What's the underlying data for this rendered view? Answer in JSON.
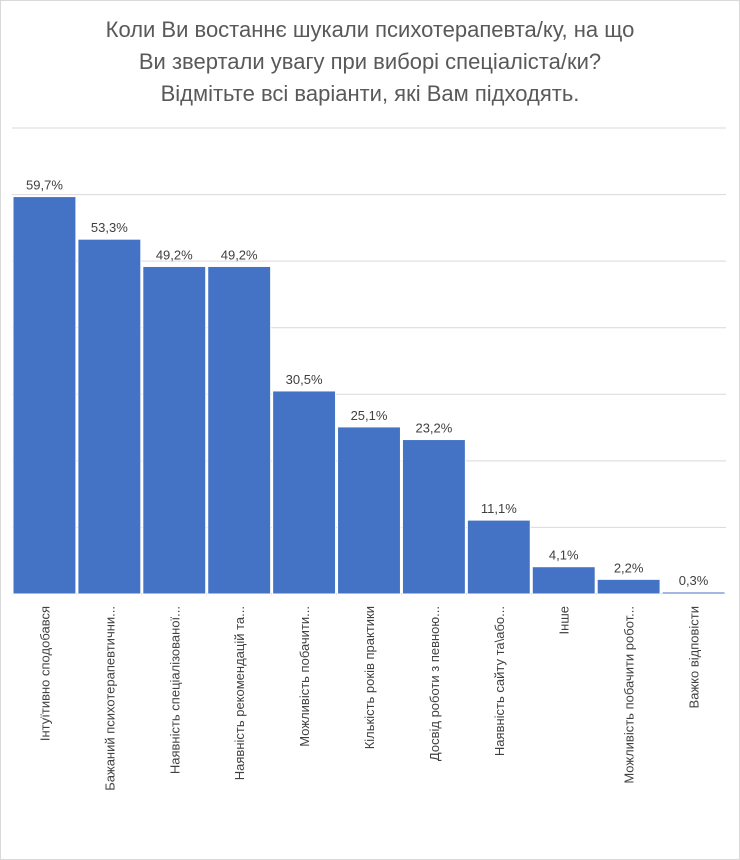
{
  "title_lines": [
    "Коли Ви востаннє шукали психотерапевта/ку,  на що",
    "Ви звертали увагу при виборі спеціаліста/ки?",
    "Відмітьте всі варіанти, які Вам підходять."
  ],
  "chart_data": {
    "type": "bar",
    "title": "Коли Ви востаннє шукали психотерапевта/ку,  на що Ви звертали увагу при виборі спеціаліста/ки? Відмітьте всі варіанти, які Вам підходять.",
    "categories": [
      "Інтуїтивно сподобався",
      "Бажаний психотерапевтични...",
      "Наявність спеціалізованої...",
      "Наявність рекомендацій та...",
      "Можливість побачити...",
      "Кількість років практики",
      "Досвід роботи з певною...",
      "Наявність сайту та\\або...",
      "Інше",
      "Можливість побачити робот...",
      "Важко відповісти"
    ],
    "values": [
      59.7,
      53.3,
      49.2,
      49.2,
      30.5,
      25.1,
      23.2,
      11.1,
      4.1,
      2.2,
      0.3
    ],
    "value_labels": [
      "59,7%",
      "53,3%",
      "49,2%",
      "49,2%",
      "30,5%",
      "25,1%",
      "23,2%",
      "11,1%",
      "4,1%",
      "2,2%",
      "0,3%"
    ],
    "ylim": [
      0,
      70
    ],
    "grid": true,
    "legend": "none",
    "bar_color": "#4472c4",
    "grid_color": "#d9d9d9",
    "label_color": "#404040"
  }
}
